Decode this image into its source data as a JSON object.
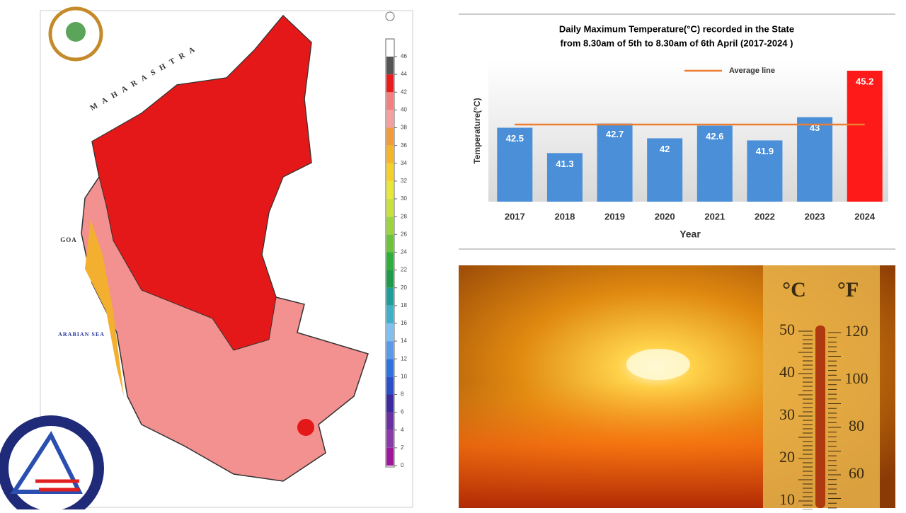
{
  "chart_data": {
    "type": "bar",
    "title": "Daily Maximum Temperature(°C) recorded in the State",
    "subtitle": "from 8.30am of 5th to 8.30am of 6th April (2017-2024 )",
    "x_label": "Year",
    "y_label": "Temperature(°C)",
    "categories": [
      "2017",
      "2018",
      "2019",
      "2020",
      "2021",
      "2022",
      "2023",
      "2024"
    ],
    "values": [
      42.5,
      41.3,
      42.7,
      42,
      42.6,
      41.9,
      43,
      45.2
    ],
    "colors": [
      "#4a8fd8",
      "#4a8fd8",
      "#4a8fd8",
      "#4a8fd8",
      "#4a8fd8",
      "#4a8fd8",
      "#4a8fd8",
      "#ff1a1a"
    ],
    "ylim": [
      39,
      45.7
    ],
    "average_line": {
      "name": "Average line",
      "value": 42.65,
      "color": "#ed7d31"
    }
  },
  "map": {
    "region_labels": [
      "MAHARASHTRA",
      "GOA",
      "ARABIAN SEA"
    ],
    "scale_ticks": [
      0,
      2,
      4,
      6,
      8,
      10,
      12,
      14,
      16,
      18,
      20,
      22,
      24,
      26,
      28,
      30,
      32,
      34,
      36,
      38,
      40,
      42,
      44,
      46
    ],
    "scale_colors": [
      "#a0169b",
      "#8a3aa8",
      "#6a2fa0",
      "#3b2a9e",
      "#2a4fc8",
      "#2e72e0",
      "#5b9ae8",
      "#7fc0f0",
      "#3fb0c8",
      "#1f9d9a",
      "#1f9a4a",
      "#2fae3c",
      "#6cc23a",
      "#9cd440",
      "#c8e040",
      "#e8e83a",
      "#f5d02a",
      "#f5b52a",
      "#f39a3a",
      "#f5a0a0",
      "#f28080",
      "#e81c1c",
      "#555555"
    ]
  },
  "photo": {
    "celsius_unit": "°C",
    "fahrenheit_unit": "°F",
    "celsius_ticks": [
      "50",
      "40",
      "30",
      "20",
      "10"
    ],
    "fahrenheit_ticks": [
      "120",
      "100",
      "80",
      "60"
    ]
  }
}
